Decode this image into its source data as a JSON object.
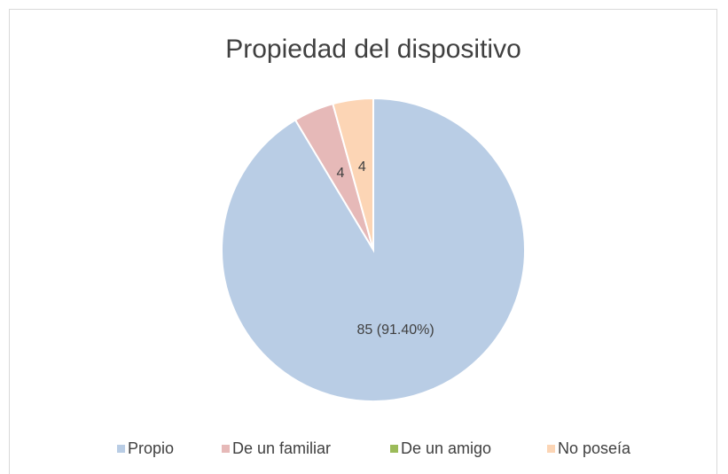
{
  "chart_data": {
    "type": "pie",
    "title": "Propiedad del dispositivo",
    "categories": [
      "Propio",
      "De un familiar",
      "De un amigo",
      "No poseía"
    ],
    "values": [
      85,
      4,
      0,
      4
    ],
    "value_labels": [
      "85 (91.40%)",
      "4",
      null,
      "4"
    ],
    "colors": [
      "#b9cde5",
      "#e6b9b8",
      "#9bbb59",
      "#fcd5b5"
    ],
    "legend": "bottom"
  }
}
